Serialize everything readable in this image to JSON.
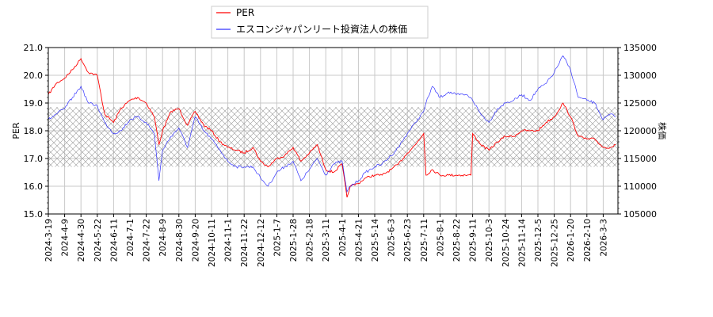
{
  "chart_data": {
    "type": "line",
    "title": "",
    "ylabel": "PER",
    "y2label": "株価",
    "ylim": [
      15.0,
      21.0
    ],
    "y2lim": [
      105000,
      135000
    ],
    "yticks": [
      "15.0",
      "16.0",
      "17.0",
      "18.0",
      "19.0",
      "20.0",
      "21.0"
    ],
    "y2ticks": [
      "105000",
      "110000",
      "115000",
      "120000",
      "125000",
      "130000",
      "135000"
    ],
    "xticks": [
      "2024-3-19",
      "2024-4-9",
      "2024-4-30",
      "2024-5-22",
      "2024-6-11",
      "2024-7-1",
      "2024-7-22",
      "2024-8-9",
      "2024-8-30",
      "2024-9-20",
      "2024-10-11",
      "2024-11-1",
      "2024-11-22",
      "2024-12-12",
      "2025-1-7",
      "2025-1-28",
      "2025-2-18",
      "2025-3-11",
      "2025-4-1",
      "2025-4-21",
      "2025-5-14",
      "2025-6-3",
      "2025-6-23",
      "2025-7-11",
      "2025-8-1",
      "2025-8-22",
      "2025-9-11",
      "2025-10-3",
      "2025-10-24",
      "2025-11-14",
      "2025-12-5",
      "2025-12-25",
      "2026-1-20",
      "2026-2-10",
      "2026-3-3"
    ],
    "grid": true,
    "legend_position": "top-center",
    "band": {
      "axis": "PER",
      "range": [
        16.7,
        18.85
      ],
      "pattern": "cross-hatch"
    },
    "series": [
      {
        "name": "PER",
        "axis": "left",
        "color": "#ff0000"
      },
      {
        "name": "エスコンジャパンリート投資法人の株価",
        "axis": "right",
        "color": "#0000ff"
      }
    ],
    "dates": [
      "2024-03-19",
      "2024-03-29",
      "2024-04-09",
      "2024-04-19",
      "2024-04-30",
      "2024-05-10",
      "2024-05-22",
      "2024-05-31",
      "2024-06-11",
      "2024-06-20",
      "2024-07-01",
      "2024-07-11",
      "2024-07-22",
      "2024-07-31",
      "2024-08-05",
      "2024-08-09",
      "2024-08-20",
      "2024-08-30",
      "2024-09-10",
      "2024-09-20",
      "2024-10-01",
      "2024-10-11",
      "2024-10-22",
      "2024-11-01",
      "2024-11-12",
      "2024-11-22",
      "2024-12-03",
      "2024-12-12",
      "2024-12-24",
      "2025-01-07",
      "2025-01-17",
      "2025-01-28",
      "2025-02-07",
      "2025-02-18",
      "2025-02-28",
      "2025-03-11",
      "2025-03-21",
      "2025-04-01",
      "2025-04-07",
      "2025-04-11",
      "2025-04-21",
      "2025-05-01",
      "2025-05-14",
      "2025-05-23",
      "2025-06-03",
      "2025-06-12",
      "2025-06-23",
      "2025-07-02",
      "2025-07-11",
      "2025-07-14",
      "2025-07-22",
      "2025-08-01",
      "2025-08-12",
      "2025-08-22",
      "2025-09-02",
      "2025-09-09",
      "2025-09-11",
      "2025-09-22",
      "2025-10-03",
      "2025-10-14",
      "2025-10-24",
      "2025-11-04",
      "2025-11-14",
      "2025-11-25",
      "2025-12-05",
      "2025-12-15",
      "2025-12-25",
      "2026-01-08",
      "2026-01-20",
      "2026-01-30",
      "2026-02-10",
      "2026-02-20",
      "2026-03-03",
      "2026-03-12",
      "2026-03-19"
    ],
    "per": [
      19.3,
      19.7,
      19.9,
      20.2,
      20.6,
      20.1,
      20.0,
      18.6,
      18.3,
      18.8,
      19.1,
      19.2,
      19.0,
      18.5,
      17.5,
      18.0,
      18.7,
      18.8,
      18.2,
      18.7,
      18.2,
      18.0,
      17.6,
      17.4,
      17.3,
      17.2,
      17.4,
      16.9,
      16.7,
      17.0,
      17.1,
      17.4,
      16.9,
      17.2,
      17.5,
      16.6,
      16.5,
      16.8,
      15.6,
      16.0,
      16.1,
      16.3,
      16.4,
      16.4,
      16.6,
      16.8,
      17.2,
      17.5,
      17.9,
      16.4,
      16.6,
      16.4,
      16.4,
      16.4,
      16.4,
      16.4,
      17.9,
      17.5,
      17.3,
      17.6,
      17.8,
      17.8,
      18.0,
      18.0,
      18.0,
      18.3,
      18.5,
      19.0,
      18.5,
      17.8,
      17.7,
      17.7,
      17.4,
      17.4,
      17.5
    ],
    "price": [
      122000,
      123000,
      124000,
      126000,
      128000,
      125000,
      124500,
      121500,
      119500,
      120000,
      122000,
      122500,
      121500,
      119500,
      111000,
      116500,
      119000,
      120500,
      117000,
      122500,
      120000,
      118500,
      116500,
      114500,
      113500,
      113500,
      113500,
      111500,
      110000,
      112500,
      113500,
      114500,
      111000,
      113000,
      115000,
      112000,
      114000,
      114500,
      109000,
      110000,
      111000,
      112500,
      113500,
      114000,
      115500,
      117000,
      119500,
      121500,
      123500,
      125000,
      128000,
      126000,
      127000,
      126500,
      126500,
      126000,
      125500,
      123000,
      121500,
      124000,
      125000,
      125500,
      126500,
      125500,
      127500,
      128500,
      130500,
      133500,
      131000,
      126000,
      125500,
      125000,
      122000,
      123000,
      122500
    ]
  }
}
